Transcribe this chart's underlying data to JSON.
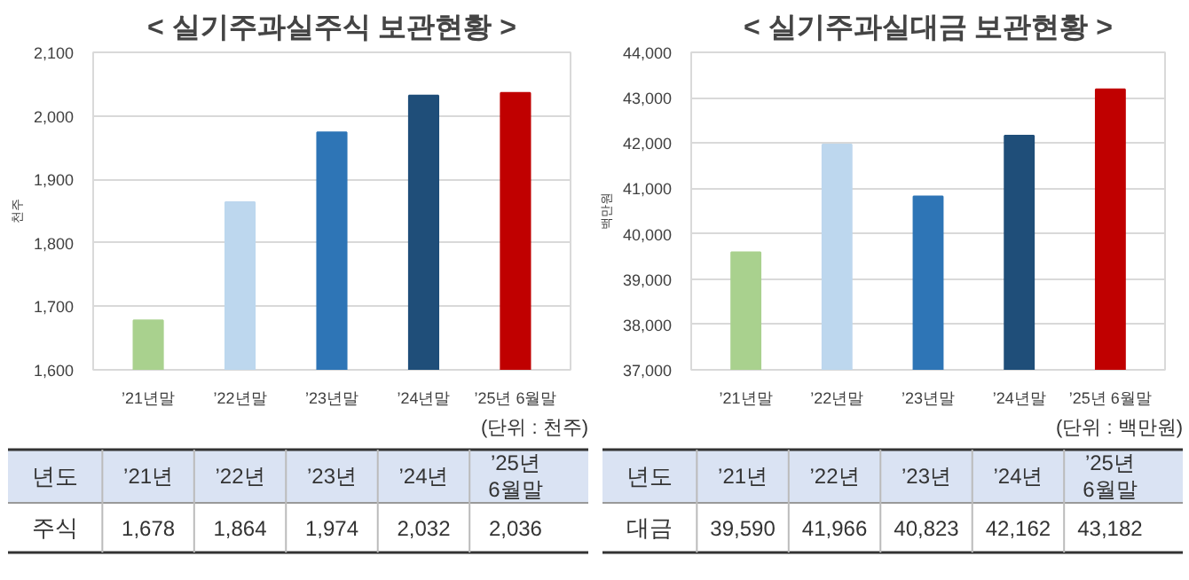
{
  "chart_data": [
    {
      "type": "bar",
      "title": "< 실기주과실주식 보관현황 >",
      "ylabel": "천주",
      "categories": [
        "’21년말",
        "’22년말",
        "’23년말",
        "’24년말",
        "’25년 6월말"
      ],
      "values": [
        1678,
        1864,
        1974,
        2032,
        2036
      ],
      "colors": [
        "#a9d18e",
        "#bdd7ee",
        "#2e75b6",
        "#1f4e79",
        "#c00000"
      ],
      "value_labels": [
        "1,678",
        "1,864",
        "1,974",
        "2,032",
        "2,036"
      ],
      "ylim": [
        1600,
        2100
      ],
      "yticks": [
        {
          "value": 1600,
          "label": "1,600"
        },
        {
          "value": 1700,
          "label": "1,700"
        },
        {
          "value": 1800,
          "label": "1,800"
        },
        {
          "value": 1900,
          "label": "1,900"
        },
        {
          "value": 2000,
          "label": "2,000"
        },
        {
          "value": 2100,
          "label": "2,100"
        }
      ],
      "grid": "y",
      "annotations": [
        "(단위 : 천주)",
        "년도",
        "’21년",
        "’22년",
        "’23년",
        "’24년",
        "’25년\n6월말",
        "주식"
      ]
    },
    {
      "type": "bar",
      "title": "< 실기주과실대금 보관현황 >",
      "ylabel": "백만원",
      "categories": [
        "’21년말",
        "’22년말",
        "’23년말",
        "’24년말",
        "’25년 6월말"
      ],
      "values": [
        39590,
        41966,
        40823,
        42162,
        43182
      ],
      "colors": [
        "#a9d18e",
        "#bdd7ee",
        "#2e75b6",
        "#1f4e79",
        "#c00000"
      ],
      "value_labels": [
        "39,590",
        "41,966",
        "40,823",
        "42,162",
        "43,182"
      ],
      "ylim": [
        37000,
        44000
      ],
      "yticks": [
        {
          "value": 37000,
          "label": "37,000"
        },
        {
          "value": 38000,
          "label": "38,000"
        },
        {
          "value": 39000,
          "label": "39,000"
        },
        {
          "value": 40000,
          "label": "40,000"
        },
        {
          "value": 41000,
          "label": "41,000"
        },
        {
          "value": 42000,
          "label": "42,000"
        },
        {
          "value": 43000,
          "label": "43,000"
        },
        {
          "value": 44000,
          "label": "44,000"
        }
      ],
      "grid": "y",
      "annotations": [
        "(단위 : 백만원)",
        "년도",
        "’21년",
        "’22년",
        "’23년",
        "’24년",
        "’25년\n6월말",
        "대금"
      ]
    }
  ]
}
